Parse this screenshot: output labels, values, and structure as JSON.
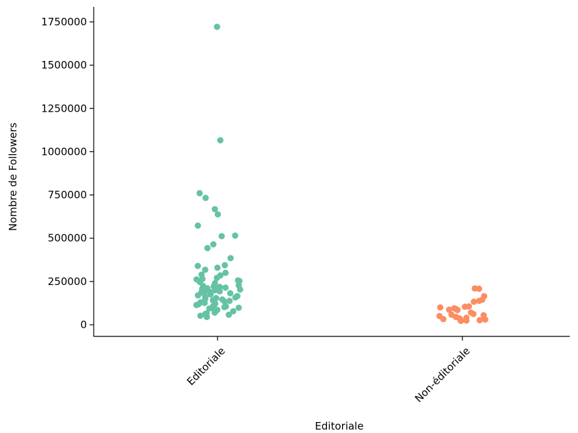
{
  "chart_data": {
    "type": "scatter",
    "style": "strip plot (jittered)",
    "xlabel": "Editoriale",
    "ylabel": "Nombre de Followers",
    "categories": [
      "Editoriale",
      "Non-éditoriale"
    ],
    "ylim": [
      -70000,
      1810000
    ],
    "yticks": [
      "0",
      "250000",
      "500000",
      "750000",
      "1000000",
      "1250000",
      "1500000",
      "1750000"
    ],
    "grid": false,
    "colors": {
      "Editoriale": "#66c2a5",
      "Non-éditoriale": "#fc8d62"
    },
    "series": [
      {
        "category": "Editoriale",
        "values": [
          1722000,
          1066000,
          760000,
          733000,
          668000,
          638000,
          573000,
          515000,
          512000,
          465000,
          443000,
          385000,
          344000,
          340000,
          330000,
          318000,
          300000,
          290000,
          285000,
          271000,
          265000,
          262000,
          256000,
          253000,
          247000,
          240000,
          228000,
          224000,
          221000,
          218000,
          214000,
          211000,
          207000,
          204000,
          200000,
          196000,
          193000,
          190000,
          186000,
          182000,
          178000,
          175000,
          170000,
          166000,
          162000,
          158000,
          154000,
          150000,
          146000,
          142000,
          138000,
          134000,
          130000,
          126000,
          122000,
          118000,
          114000,
          110000,
          106000,
          102000,
          98000,
          94000,
          90000,
          86000,
          82000,
          78000,
          74000,
          70000,
          66000,
          62000,
          58000,
          52000,
          45000
        ]
      },
      {
        "category": "Non-éditoriale",
        "values": [
          210000,
          208000,
          165000,
          145000,
          138000,
          133000,
          106000,
          104000,
          100000,
          95000,
          92000,
          87000,
          85000,
          70000,
          62000,
          58000,
          55000,
          50000,
          45000,
          40000,
          36000,
          33000,
          30000,
          28000,
          26000,
          24000,
          22000
        ]
      }
    ]
  }
}
